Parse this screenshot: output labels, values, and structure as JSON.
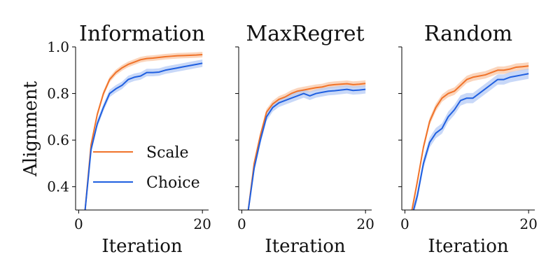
{
  "figure": {
    "ylabel": "Alignment",
    "xlabel": "Iteration"
  },
  "colors": {
    "Scale": "#f0732a",
    "Choice": "#1f5fe0",
    "Scale_band": "#f9c7a6",
    "Choice_band": "#b5cbf5"
  },
  "chart_data": [
    {
      "type": "line",
      "title": "Information",
      "xlabel": "Iteration",
      "ylabel": "Alignment",
      "xlim": [
        -0.5,
        21
      ],
      "ylim": [
        0.3,
        1.0
      ],
      "xticks": [
        0,
        20
      ],
      "yticks": [
        0.4,
        0.6,
        0.8,
        1.0
      ],
      "ytick_labels": [
        "0.4",
        "0.6",
        "0.8",
        "1.0"
      ],
      "x": [
        1,
        2,
        3,
        4,
        5,
        6,
        7,
        8,
        9,
        10,
        11,
        12,
        13,
        14,
        15,
        16,
        17,
        18,
        19,
        20
      ],
      "legend": {
        "location": "center-right",
        "entries": [
          "Scale",
          "Choice"
        ]
      },
      "series": [
        {
          "name": "Scale",
          "values": [
            0.29,
            0.58,
            0.71,
            0.8,
            0.86,
            0.89,
            0.91,
            0.925,
            0.935,
            0.945,
            0.95,
            0.952,
            0.955,
            0.958,
            0.96,
            0.962,
            0.963,
            0.964,
            0.965,
            0.967
          ],
          "band": 0.012
        },
        {
          "name": "Choice",
          "values": [
            0.29,
            0.56,
            0.67,
            0.74,
            0.8,
            0.82,
            0.835,
            0.86,
            0.87,
            0.875,
            0.89,
            0.89,
            0.892,
            0.9,
            0.905,
            0.91,
            0.915,
            0.92,
            0.925,
            0.93
          ],
          "band": 0.016
        }
      ]
    },
    {
      "type": "line",
      "title": "MaxRegret",
      "xlabel": "Iteration",
      "ylabel": "",
      "xlim": [
        -0.5,
        21
      ],
      "ylim": [
        0.3,
        1.0
      ],
      "xticks": [
        0,
        20
      ],
      "yticks": [
        0.4,
        0.6,
        0.8,
        1.0
      ],
      "ytick_labels": [
        "",
        "",
        "",
        ""
      ],
      "x": [
        1,
        2,
        3,
        4,
        5,
        6,
        7,
        8,
        9,
        10,
        11,
        12,
        13,
        14,
        15,
        16,
        17,
        18,
        19,
        20
      ],
      "series": [
        {
          "name": "Scale",
          "values": [
            0.29,
            0.5,
            0.62,
            0.72,
            0.755,
            0.775,
            0.785,
            0.8,
            0.81,
            0.815,
            0.82,
            0.825,
            0.828,
            0.835,
            0.838,
            0.84,
            0.842,
            0.838,
            0.84,
            0.843
          ],
          "band": 0.014
        },
        {
          "name": "Choice",
          "values": [
            0.29,
            0.48,
            0.6,
            0.7,
            0.74,
            0.76,
            0.77,
            0.78,
            0.79,
            0.8,
            0.79,
            0.8,
            0.805,
            0.81,
            0.812,
            0.815,
            0.818,
            0.813,
            0.815,
            0.818
          ],
          "band": 0.018
        }
      ]
    },
    {
      "type": "line",
      "title": "Random",
      "xlabel": "Iteration",
      "ylabel": "",
      "xlim": [
        -0.5,
        21
      ],
      "ylim": [
        0.3,
        1.0
      ],
      "xticks": [
        0,
        20
      ],
      "yticks": [
        0.4,
        0.6,
        0.8,
        1.0
      ],
      "ytick_labels": [
        "",
        "",
        "",
        ""
      ],
      "x": [
        1,
        2,
        3,
        4,
        5,
        6,
        7,
        8,
        9,
        10,
        11,
        12,
        13,
        14,
        15,
        16,
        17,
        18,
        19,
        20
      ],
      "series": [
        {
          "name": "Scale",
          "values": [
            0.28,
            0.42,
            0.57,
            0.68,
            0.74,
            0.78,
            0.8,
            0.81,
            0.835,
            0.86,
            0.87,
            0.875,
            0.88,
            0.89,
            0.9,
            0.9,
            0.905,
            0.913,
            0.915,
            0.918
          ],
          "band": 0.016
        },
        {
          "name": "Choice",
          "values": [
            0.26,
            0.36,
            0.5,
            0.59,
            0.63,
            0.65,
            0.7,
            0.73,
            0.77,
            0.78,
            0.78,
            0.8,
            0.82,
            0.84,
            0.86,
            0.86,
            0.87,
            0.875,
            0.88,
            0.885
          ],
          "band": 0.022
        }
      ]
    }
  ]
}
